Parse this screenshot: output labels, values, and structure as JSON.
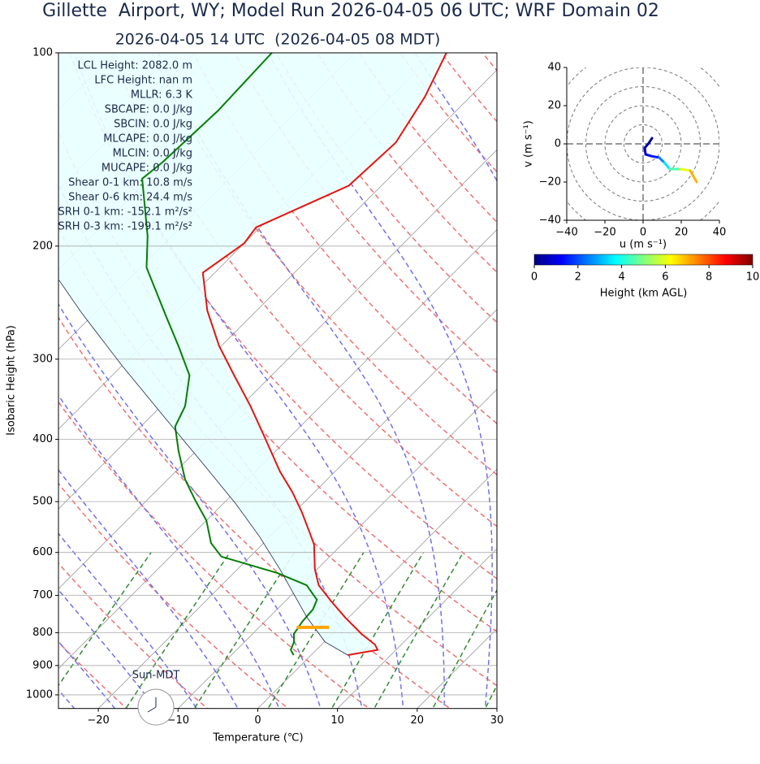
{
  "title": "Gillette  Airport, WY; Model Run 2026-04-05 06 UTC; WRF Domain 02",
  "chart_data": [
    {
      "type": "skewt",
      "subtitle": "2026-04-05 14 UTC  (2026-04-05 08 MDT)",
      "xlabel": "Temperature (℃)",
      "ylabel": "Isobaric Height (hPa)",
      "xlim": [
        -25,
        30
      ],
      "ylim": [
        1050,
        100
      ],
      "yscale": "log",
      "grid": true,
      "xticks": [
        {
          "value": -20,
          "label": "−20"
        },
        {
          "value": -10,
          "label": "−10"
        },
        0,
        10,
        20,
        30
      ],
      "yticks": [
        100,
        200,
        300,
        400,
        500,
        600,
        700,
        800,
        900,
        1000
      ],
      "annotations": [
        "LCL Height: 2082.0 m",
        "LFC Height: nan m",
        "MLLR: 6.3 K",
        "SBCAPE: 0.0 J/kg",
        "SBCIN: 0.0 J/kg",
        "MLCAPE: 0.0 J/kg",
        "MLCIN: 0.0 J/kg",
        "MUCAPE: 0.0 J/kg",
        "Shear 0-1 km: 10.8 m/s",
        "Shear 0-6 km: 24.4 m/s",
        "SRH 0-1 km: -152.1 m²/s²",
        "SRH 0-3 km: -199.1 m²/s²"
      ],
      "sun_label": "Sun-MDT",
      "lcl_pressure": 785,
      "lcl_color": "#ffa500",
      "series": [
        {
          "color": "#e8140f",
          "pressure": [
            867,
            851,
            835,
            804,
            758,
            715,
            675,
            637,
            583,
            558,
            519,
            483,
            449,
            394,
            355,
            318,
            286,
            252,
            220,
            198,
            187,
            161,
            138,
            117,
            100
          ],
          "values": [
            4.6,
            7.7,
            6.7,
            3.7,
            -0.4,
            -4.2,
            -7.8,
            -10.3,
            -13.5,
            -15.6,
            -19.1,
            -22.8,
            -26.9,
            -33.5,
            -38.8,
            -44.7,
            -50.3,
            -56.2,
            -61.5,
            -60.0,
            -60.5,
            -54.1,
            -53.6,
            -55.7,
            -58.5
          ]
        },
        {
          "color": "#008000",
          "pressure": [
            867,
            851,
            827,
            804,
            769,
            736,
            711,
            675,
            646,
            609,
            580,
            535,
            497,
            462,
            417,
            382,
            355,
            318,
            286,
            258,
            216,
            193,
            157,
            148,
            123,
            100
          ],
          "values": [
            -2.2,
            -3.2,
            -3.8,
            -4.8,
            -5.3,
            -5.5,
            -6.2,
            -9.3,
            -14.5,
            -23.6,
            -26.6,
            -30.0,
            -34.0,
            -37.8,
            -42.2,
            -45.7,
            -47.0,
            -50.3,
            -55.4,
            -60.5,
            -69.2,
            -73.0,
            -80.9,
            -80.4,
            -79.9,
            -80.4
          ]
        },
        {
          "color": "#1a2a4a",
          "pressure": [
            867,
            827,
            758,
            637,
            567,
            504,
            436,
            366,
            307,
            254,
            226
          ],
          "values": [
            4.6,
            0.1,
            -5.2,
            -14.7,
            -21.3,
            -28.4,
            -37.6,
            -48.8,
            -60.0,
            -71.7,
            -78.6
          ]
        }
      ]
    },
    {
      "type": "hodograph",
      "xlabel": "u (m s⁻¹)",
      "ylabel": "v (m s⁻¹)",
      "xlim": [
        -40,
        40
      ],
      "ylim": [
        -40,
        40
      ],
      "xticks": [
        {
          "value": -40,
          "label": "−40"
        },
        {
          "value": -20,
          "label": "−20"
        },
        0,
        20,
        40
      ],
      "yticks": [
        {
          "value": -40,
          "label": "−40"
        },
        {
          "value": -20,
          "label": "−20"
        },
        0,
        20,
        40
      ],
      "u": [
        4.7,
        3.0,
        0.9,
        1.3,
        4.3,
        8.5,
        11.1,
        14.0,
        19.6,
        24.7,
        28.1
      ],
      "v": [
        3.0,
        0.4,
        -2.1,
        -5.5,
        -6.4,
        -7.2,
        -9.8,
        -13.2,
        -13.2,
        -14.0,
        -20.0
      ],
      "height": [
        0,
        0.3,
        0.6,
        1.0,
        1.5,
        2.5,
        3.5,
        4.5,
        6,
        7,
        8.5
      ],
      "colorbar": {
        "label": "Height (km AGL)",
        "lim": [
          0,
          10
        ],
        "ticks": [
          0,
          2,
          4,
          6,
          8,
          10
        ]
      }
    }
  ]
}
